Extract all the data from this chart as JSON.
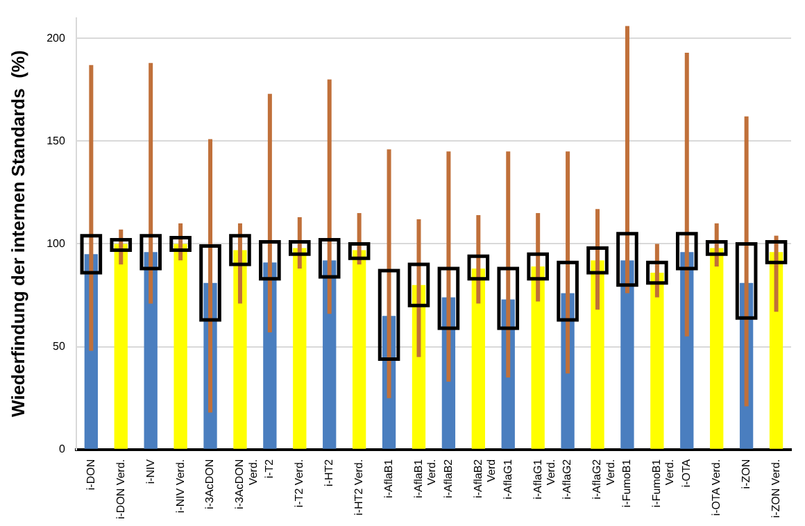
{
  "chart_data": {
    "type": "box",
    "ylabel": "Wiederfindung der internen Standards  (%)",
    "categories": [
      "i-DON",
      "i-DON Verd.",
      "i-NIV",
      "i-NIV Verd.",
      "i-3AcDON",
      "i-3AcDON Verd.",
      "i-T2",
      "i-T2 Verd.",
      "i-HT2",
      "i-HT2 Verd.",
      "i-AflaB1",
      "i-AflaB1 Verd.",
      "i-AflaB2",
      "i-AflaB2 Verd",
      "i-AflaG1",
      "i-AflaG1 Verd.",
      "i-AflaG2",
      "i-AflaG2 Verd.",
      "i-FumoB1",
      "i-FumoB1 Verd.",
      "i-OTA",
      "i-OTA Verd.",
      "i-ZON",
      "i-ZON Verd."
    ],
    "boxes": [
      {
        "low": 48,
        "q1": 86,
        "median": 95,
        "q3": 104,
        "high": 187
      },
      {
        "low": 90,
        "q1": 97,
        "median": 100,
        "q3": 102,
        "high": 107
      },
      {
        "low": 71,
        "q1": 88,
        "median": 96,
        "q3": 104,
        "high": 188
      },
      {
        "low": 92,
        "q1": 97,
        "median": 100,
        "q3": 103,
        "high": 110
      },
      {
        "low": 18,
        "q1": 63,
        "median": 81,
        "q3": 99,
        "high": 151
      },
      {
        "low": 71,
        "q1": 90,
        "median": 97,
        "q3": 104,
        "high": 110
      },
      {
        "low": 57,
        "q1": 83,
        "median": 91,
        "q3": 101,
        "high": 173
      },
      {
        "low": 88,
        "q1": 95,
        "median": 98,
        "q3": 101,
        "high": 113
      },
      {
        "low": 66,
        "q1": 84,
        "median": 92,
        "q3": 102,
        "high": 180
      },
      {
        "low": 90,
        "q1": 93,
        "median": 97,
        "q3": 100,
        "high": 115
      },
      {
        "low": 25,
        "q1": 44,
        "median": 65,
        "q3": 87,
        "high": 146
      },
      {
        "low": 45,
        "q1": 70,
        "median": 80,
        "q3": 90,
        "high": 112
      },
      {
        "low": 33,
        "q1": 59,
        "median": 74,
        "q3": 88,
        "high": 145
      },
      {
        "low": 71,
        "q1": 83,
        "median": 88,
        "q3": 94,
        "high": 114
      },
      {
        "low": 35,
        "q1": 59,
        "median": 73,
        "q3": 88,
        "high": 145
      },
      {
        "low": 72,
        "q1": 83,
        "median": 89,
        "q3": 95,
        "high": 115
      },
      {
        "low": 37,
        "q1": 63,
        "median": 76,
        "q3": 91,
        "high": 145
      },
      {
        "low": 68,
        "q1": 86,
        "median": 92,
        "q3": 98,
        "high": 117
      },
      {
        "low": 76,
        "q1": 80,
        "median": 92,
        "q3": 105,
        "high": 206
      },
      {
        "low": 74,
        "q1": 81,
        "median": 86,
        "q3": 91,
        "high": 100
      },
      {
        "low": 55,
        "q1": 88,
        "median": 96,
        "q3": 105,
        "high": 193
      },
      {
        "low": 89,
        "q1": 95,
        "median": 98,
        "q3": 101,
        "high": 110
      },
      {
        "low": 21,
        "q1": 64,
        "median": 81,
        "q3": 100,
        "high": 162
      },
      {
        "low": 67,
        "q1": 91,
        "median": 96,
        "q3": 101,
        "high": 104
      }
    ],
    "colors": [
      "#4a7ebf",
      "#ffff00",
      "#4a7ebf",
      "#ffff00",
      "#4a7ebf",
      "#ffff00",
      "#4a7ebf",
      "#ffff00",
      "#4a7ebf",
      "#ffff00",
      "#4a7ebf",
      "#ffff00",
      "#4a7ebf",
      "#ffff00",
      "#4a7ebf",
      "#ffff00",
      "#4a7ebf",
      "#ffff00",
      "#4a7ebf",
      "#ffff00",
      "#4a7ebf",
      "#ffff00",
      "#4a7ebf",
      "#ffff00"
    ],
    "ylim": [
      0,
      210
    ],
    "yticks": [
      0,
      50,
      100,
      150,
      200
    ],
    "grid": "y"
  }
}
